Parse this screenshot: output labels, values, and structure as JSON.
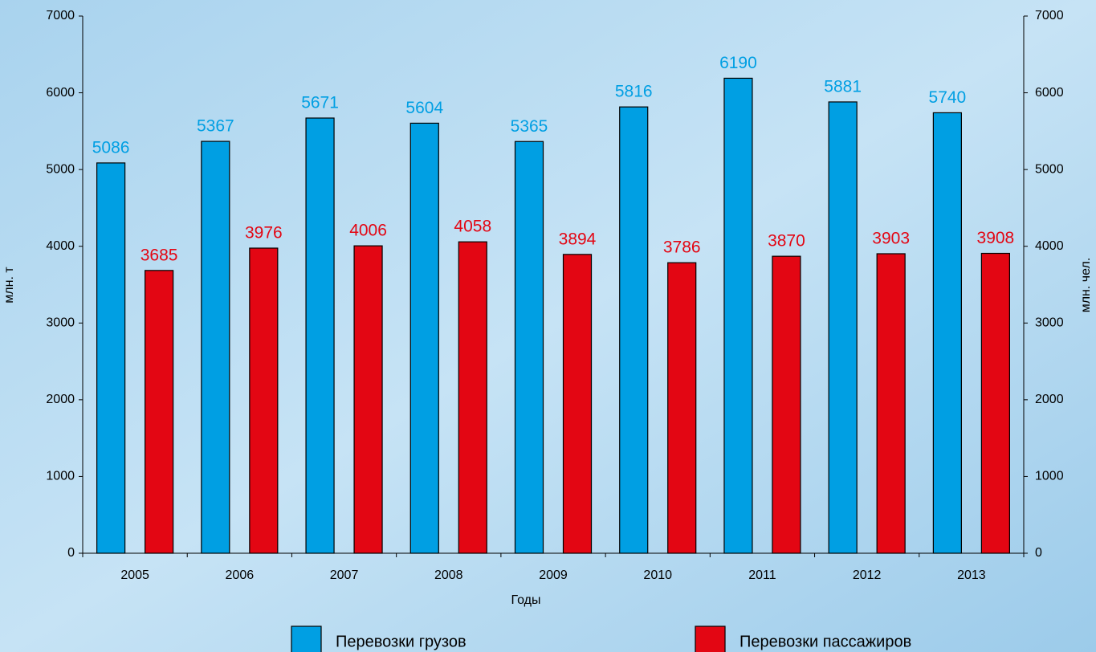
{
  "chart_data": {
    "type": "bar",
    "categories": [
      "2005",
      "2006",
      "2007",
      "2008",
      "2009",
      "2010",
      "2011",
      "2012",
      "2013"
    ],
    "series": [
      {
        "name": "Перевозки грузов",
        "color": "#009fe3",
        "values": [
          5086,
          5367,
          5671,
          5604,
          5365,
          5816,
          6190,
          5881,
          5740
        ]
      },
      {
        "name": "Перевозки пассажиров",
        "color": "#e30613",
        "axis": "y2",
        "values": [
          3685,
          3976,
          4006,
          4058,
          3894,
          3786,
          3870,
          3903,
          3908
        ]
      }
    ],
    "x_label": "Годы",
    "y_label": "млн. т",
    "y2_label": "млн. чел.",
    "ylim": [
      0,
      7000
    ],
    "yticks": [
      0,
      1000,
      2000,
      3000,
      4000,
      5000,
      6000,
      7000
    ],
    "y2lim": [
      0,
      7000
    ],
    "y2ticks": [
      0,
      1000,
      2000,
      3000,
      4000,
      5000,
      6000,
      7000
    ],
    "legend": "bottom"
  }
}
